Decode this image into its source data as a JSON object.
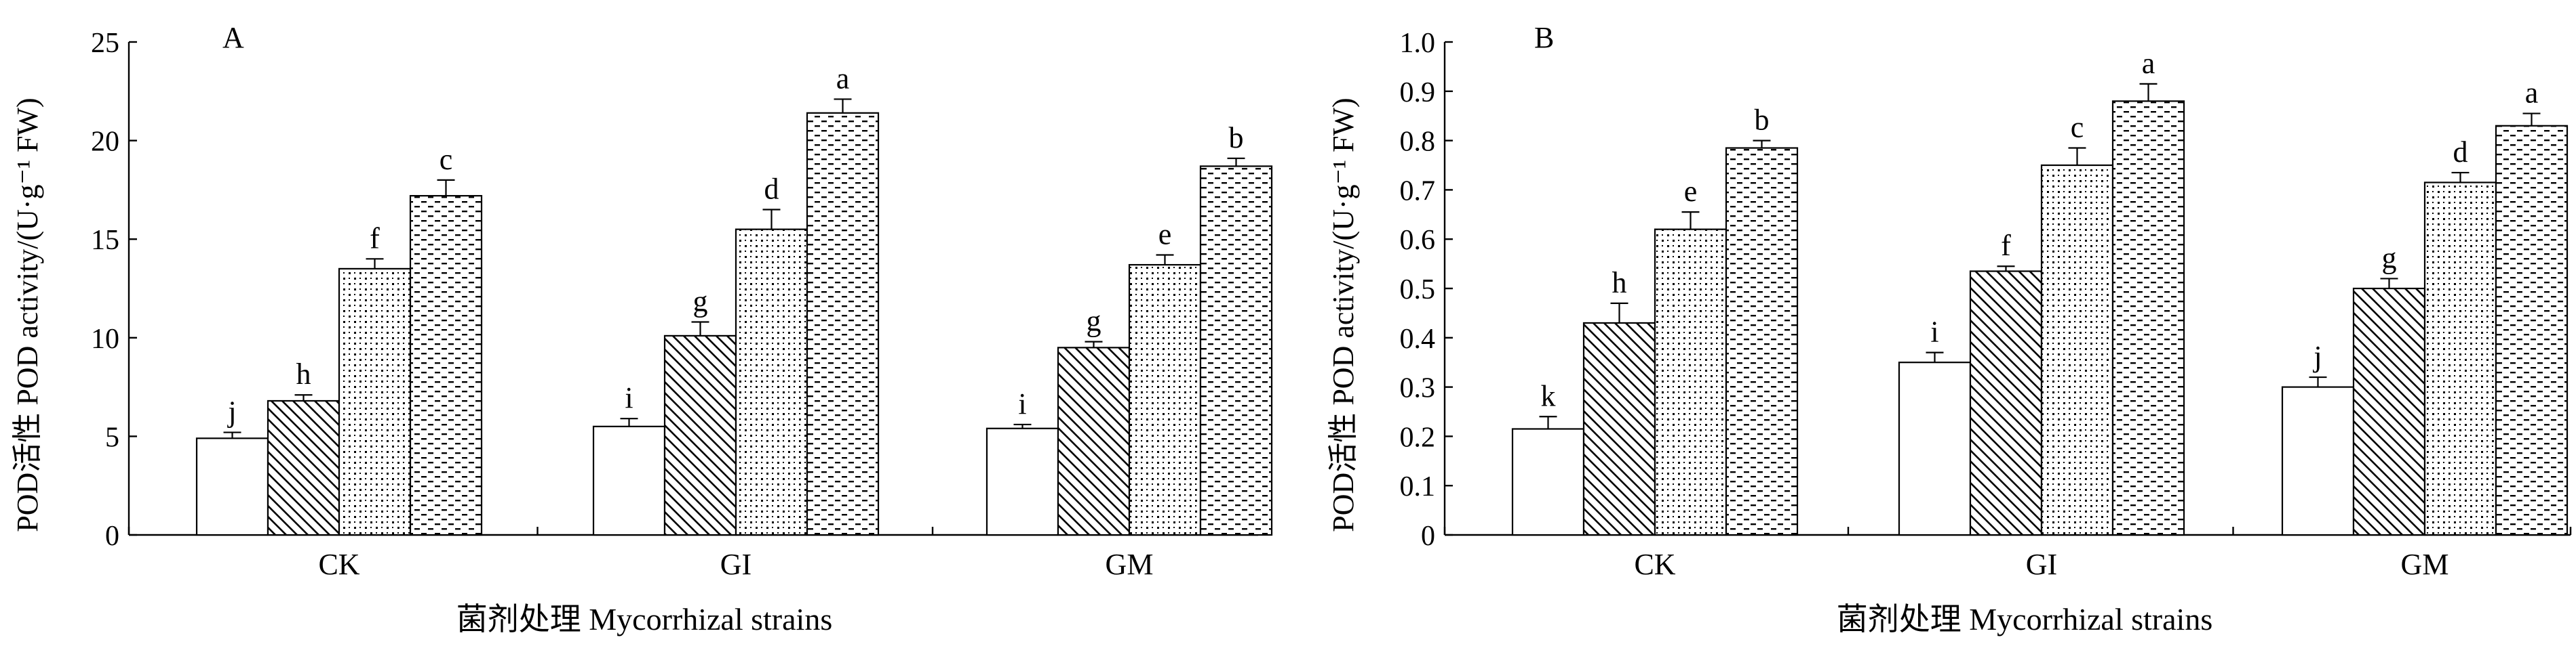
{
  "colors": {
    "axis": "#000000",
    "bar_stroke": "#000000",
    "bar_fill": "#ffffff",
    "background": "#ffffff"
  },
  "chart_data": [
    {
      "type": "bar",
      "panel_label": "A",
      "categories": [
        "CK",
        "GI",
        "GM"
      ],
      "xlabel": "菌剂处理 Mycorrhizal strains",
      "ylabel": "POD活性 POD activity/(U·g⁻¹ FW)",
      "ylim": [
        0,
        25
      ],
      "yticks": [
        0,
        5,
        10,
        15,
        20,
        25
      ],
      "ytick_labels": [
        "0",
        "5",
        "10",
        "15",
        "20",
        "25"
      ],
      "grid": false,
      "series_fill_patterns": [
        "blank",
        "diagonal-hatch",
        "dots",
        "dashes"
      ],
      "series": [
        {
          "values": [
            4.9,
            5.5,
            5.4
          ],
          "errors": [
            0.3,
            0.4,
            0.2
          ],
          "letters": [
            "j",
            "i",
            "i"
          ]
        },
        {
          "values": [
            6.8,
            10.1,
            9.5
          ],
          "errors": [
            0.3,
            0.7,
            0.3
          ],
          "letters": [
            "h",
            "g",
            "g"
          ]
        },
        {
          "values": [
            13.5,
            15.5,
            13.7
          ],
          "errors": [
            0.5,
            1.0,
            0.5
          ],
          "letters": [
            "f",
            "d",
            "e"
          ]
        },
        {
          "values": [
            17.2,
            21.4,
            18.7
          ],
          "errors": [
            0.8,
            0.7,
            0.4
          ],
          "letters": [
            "c",
            "a",
            "b"
          ]
        }
      ]
    },
    {
      "type": "bar",
      "panel_label": "B",
      "categories": [
        "CK",
        "GI",
        "GM"
      ],
      "xlabel": "菌剂处理 Mycorrhizal strains",
      "ylabel": "POD活性 POD activity/(U·g⁻¹ FW)",
      "ylim": [
        0,
        1.0
      ],
      "yticks": [
        0,
        0.1,
        0.2,
        0.3,
        0.4,
        0.5,
        0.6,
        0.7,
        0.8,
        0.9,
        1.0
      ],
      "ytick_labels": [
        "0",
        "0.1",
        "0.2",
        "0.3",
        "0.4",
        "0.5",
        "0.6",
        "0.7",
        "0.8",
        "0.9",
        "1.0"
      ],
      "grid": false,
      "series_fill_patterns": [
        "blank",
        "diagonal-hatch",
        "dots",
        "dashes"
      ],
      "series": [
        {
          "values": [
            0.215,
            0.35,
            0.3
          ],
          "errors": [
            0.025,
            0.02,
            0.02
          ],
          "letters": [
            "k",
            "i",
            "j"
          ]
        },
        {
          "values": [
            0.43,
            0.535,
            0.5
          ],
          "errors": [
            0.04,
            0.01,
            0.02
          ],
          "letters": [
            "h",
            "f",
            "g"
          ]
        },
        {
          "values": [
            0.62,
            0.75,
            0.715
          ],
          "errors": [
            0.035,
            0.035,
            0.02
          ],
          "letters": [
            "e",
            "c",
            "d"
          ]
        },
        {
          "values": [
            0.785,
            0.88,
            0.83
          ],
          "errors": [
            0.015,
            0.035,
            0.025
          ],
          "letters": [
            "b",
            "a",
            "a"
          ]
        }
      ]
    }
  ]
}
